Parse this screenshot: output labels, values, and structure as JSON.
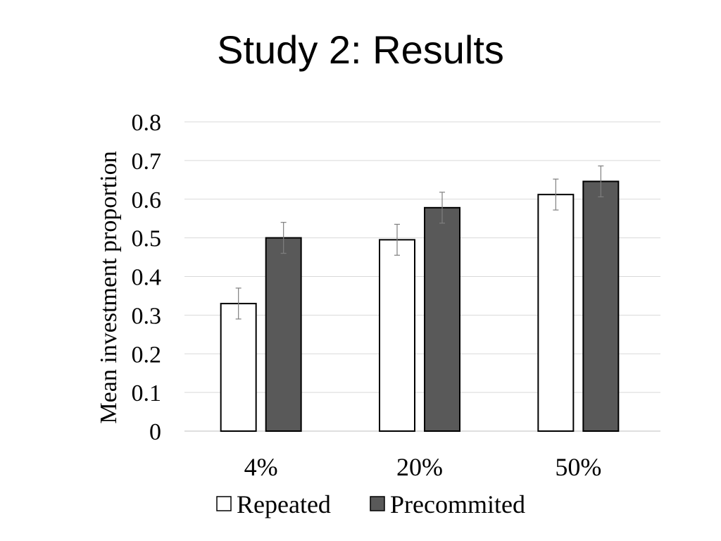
{
  "title": "Study 2: Results",
  "chart_data": {
    "type": "bar",
    "categories": [
      "4%",
      "20%",
      "50%"
    ],
    "series": [
      {
        "name": "Repeated",
        "color": "#ffffff",
        "values": [
          0.33,
          0.495,
          0.612
        ],
        "error": [
          0.04,
          0.04,
          0.04
        ]
      },
      {
        "name": "Precommited",
        "color": "#595959",
        "values": [
          0.5,
          0.578,
          0.646
        ],
        "error": [
          0.04,
          0.04,
          0.04
        ]
      }
    ],
    "ylabel": "Mean investment proportion",
    "xlabel": "",
    "ylim": [
      0,
      0.8
    ],
    "yticks": [
      "0",
      "0.1",
      "0.2",
      "0.3",
      "0.4",
      "0.5",
      "0.6",
      "0.7",
      "0.8"
    ],
    "grid": true,
    "legend_position": "bottom"
  }
}
